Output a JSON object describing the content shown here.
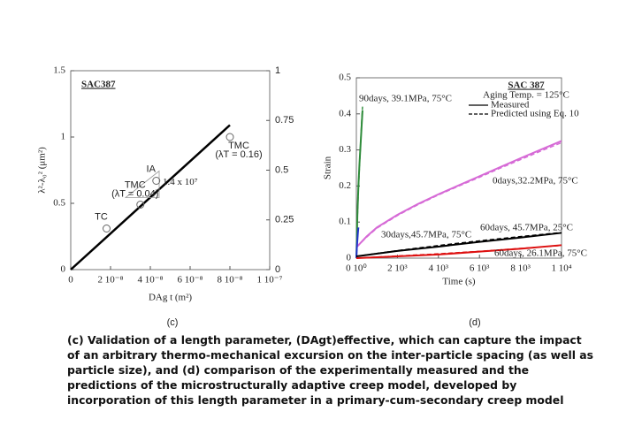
{
  "chart_data": [
    {
      "type": "scatter",
      "panel_label": "(c)",
      "title": "SAC387",
      "x_label": "DAg t (m²)",
      "y_label": "λ²-λ₀² (μm²)",
      "xlim": [
        0,
        1e-07
      ],
      "xticks": [
        0,
        {
          "value": 2e-08,
          "label": "2 10⁻⁸"
        },
        {
          "value": 4e-08,
          "label": "4 10⁻⁸"
        },
        {
          "value": 6e-08,
          "label": "6 10⁻⁸"
        },
        {
          "value": 8e-08,
          "label": "8 10⁻⁸"
        },
        {
          "value": 1e-07,
          "label": "1 10⁻⁷"
        }
      ],
      "ylim": [
        0,
        1.5
      ],
      "yticks": [
        0,
        0.5,
        1,
        1.5
      ],
      "y2lim": [
        0,
        1
      ],
      "y2ticks": [
        0,
        0.25,
        0.5,
        0.75,
        1
      ],
      "points": {
        "x": [
          1.8e-08,
          3.5e-08,
          4.3e-08,
          8e-08
        ],
        "values": [
          0.31,
          0.49,
          0.67,
          1.0
        ],
        "labels": [
          "TC",
          "TMC",
          "IA",
          "TMC"
        ],
        "notes": [
          null,
          "(λT = 0.04)",
          null,
          "(λT = 0.16)"
        ]
      },
      "fit": {
        "x": [
          0,
          8e-08
        ],
        "values": [
          0,
          1.09
        ],
        "color": "#000000"
      },
      "slope_label": "1.4 x 10⁷"
    },
    {
      "type": "line",
      "panel_label": "(d)",
      "title": "SAC 387",
      "subtitle": "Aging Temp. = 125°C",
      "x_label": "Time (s)",
      "y_label": "Strain",
      "legend": [
        "Measured",
        "Predicted using Eq. 10"
      ],
      "xlim": [
        0,
        10000
      ],
      "xticks": [
        {
          "value": 0,
          "label": "0 10⁰"
        },
        {
          "value": 2000,
          "label": "2 10³"
        },
        {
          "value": 4000,
          "label": "4 10³"
        },
        {
          "value": 6000,
          "label": "6 10³"
        },
        {
          "value": 8000,
          "label": "8 10³"
        },
        {
          "value": 10000,
          "label": "1 10⁴"
        }
      ],
      "ylim": [
        0,
        0.5
      ],
      "yticks": [
        0,
        0.1,
        0.2,
        0.3,
        0.4,
        0.5
      ],
      "series": [
        {
          "name": "0days,32.2MPa, 75°C",
          "color": "#d66ad6",
          "x": [
            0,
            500,
            1000,
            2000,
            3000,
            4000,
            5000,
            6000,
            7000,
            8000,
            9000,
            10000
          ],
          "measured": [
            0.03,
            0.06,
            0.085,
            0.12,
            0.15,
            0.177,
            0.202,
            0.227,
            0.252,
            0.277,
            0.301,
            0.325
          ],
          "predicted": [
            0.03,
            0.058,
            0.083,
            0.118,
            0.148,
            0.175,
            0.2,
            0.224,
            0.249,
            0.273,
            0.297,
            0.32
          ]
        },
        {
          "name": "90days, 39.1MPa, 75°C",
          "color": "#2e8b3a",
          "x": [
            0,
            50,
            100,
            150,
            200,
            250,
            300
          ],
          "measured": [
            0,
            0.12,
            0.2,
            0.26,
            0.31,
            0.36,
            0.41
          ],
          "predicted": [
            0,
            0.11,
            0.19,
            0.25,
            0.31,
            0.37,
            0.42
          ]
        },
        {
          "name": "30days,45.7MPa, 75°C",
          "color": "#2233cc",
          "x": [
            0,
            25,
            50,
            75,
            100
          ],
          "measured": [
            0,
            0.03,
            0.05,
            0.07,
            0.085
          ],
          "predicted": [
            0,
            0.028,
            0.05,
            0.068,
            0.082
          ]
        },
        {
          "name": "60days, 45.7MPa, 25°C",
          "color": "#000000",
          "x": [
            0,
            2000,
            4000,
            6000,
            8000,
            10000
          ],
          "measured": [
            0.005,
            0.02,
            0.032,
            0.045,
            0.057,
            0.07
          ],
          "predicted": [
            0.005,
            0.021,
            0.035,
            0.048,
            0.06,
            0.071
          ]
        },
        {
          "name": "60days, 26.1MPa, 75°C",
          "color": "#dd1111",
          "x": [
            0,
            2000,
            4000,
            6000,
            8000,
            10000
          ],
          "measured": [
            0,
            0.005,
            0.01,
            0.018,
            0.026,
            0.036
          ],
          "predicted": [
            0,
            0.006,
            0.012,
            0.019,
            0.027,
            0.035
          ]
        }
      ]
    }
  ],
  "caption": "(c) Validation of a length parameter, (DAgt)effective, which can capture the impact of an arbitrary thermo-mechanical excursion on the inter-particle spacing (as well as particle size), and (d) comparison of the experimentally measured and the predictions of the microstructurally adaptive creep model, developed by incorporation of this length parameter in a primary-cum-secondary creep model"
}
